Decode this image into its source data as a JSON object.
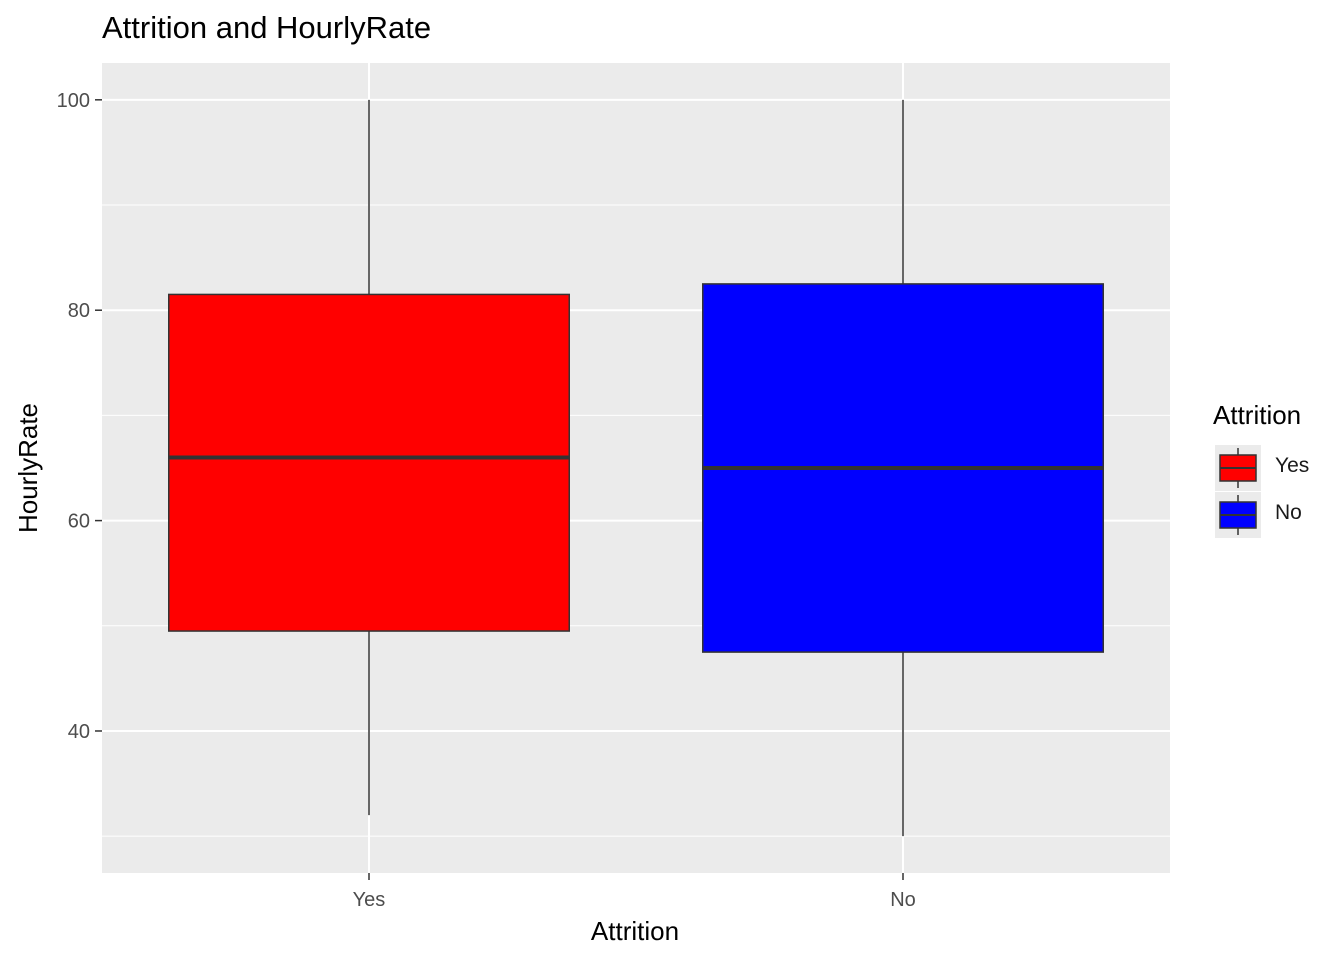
{
  "chart_data": {
    "type": "box",
    "title": "Attrition and HourlyRate",
    "xlabel": "Attrition",
    "ylabel": "HourlyRate",
    "categories": [
      "Yes",
      "No"
    ],
    "ylim": [
      26.5,
      103.5
    ],
    "yticks": [
      40,
      60,
      80,
      100
    ],
    "grid": true,
    "boxes": [
      {
        "category": "Yes",
        "min": 32,
        "q1": 49.5,
        "median": 66,
        "q3": 81.5,
        "max": 100,
        "color": "#ff0000"
      },
      {
        "category": "No",
        "min": 30,
        "q1": 47.5,
        "median": 65,
        "q3": 82.5,
        "max": 100,
        "color": "#0000ff"
      }
    ],
    "legend": {
      "title": "Attrition",
      "placement": "right",
      "items": [
        {
          "label": "Yes",
          "color": "#ff0000"
        },
        {
          "label": "No",
          "color": "#0000ff"
        }
      ]
    },
    "panel_color": "#ebebeb",
    "gridline_color": "#ffffff",
    "box_outline_color": "#333333"
  }
}
